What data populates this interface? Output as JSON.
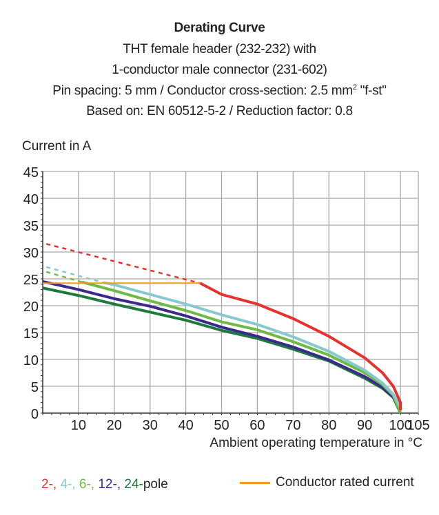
{
  "header": {
    "title": "Derating Curve",
    "line1": "THT female header (232-232) with",
    "line2": "1-conductor male connector (231-602)",
    "line3a": "Pin spacing: 5 mm / Conductor cross-section: 2.5 mm",
    "line3sup": "2",
    "line3b": " \"f-st\"",
    "line4": "Based on: EN 60512-5-2 / Reduction factor: 0.8"
  },
  "chart_data": {
    "type": "line",
    "ylabel": "Current in A",
    "xlabel": "Ambient operating temperature in °C",
    "xlim": [
      0,
      105
    ],
    "ylim": [
      0,
      45
    ],
    "xticks": [
      10,
      20,
      30,
      40,
      50,
      60,
      70,
      80,
      90,
      100,
      105
    ],
    "yticks": [
      0,
      5,
      10,
      15,
      20,
      25,
      30,
      35,
      40,
      45
    ],
    "grid": true,
    "series": [
      {
        "name": "2-",
        "color": "#e5322d",
        "dashed": [
          [
            1,
            31.5
          ],
          [
            44,
            24.2
          ]
        ],
        "points": [
          [
            44,
            24.2
          ],
          [
            50,
            22.1
          ],
          [
            60,
            20.3
          ],
          [
            70,
            17.6
          ],
          [
            80,
            14.3
          ],
          [
            90,
            10.3
          ],
          [
            95,
            7.5
          ],
          [
            98,
            5
          ],
          [
            100,
            2
          ],
          [
            100,
            0.5
          ]
        ]
      },
      {
        "name": "4-",
        "color": "#87c9cf",
        "dashed": [
          [
            1,
            27.2
          ],
          [
            17,
            24.3
          ]
        ],
        "points": [
          [
            17,
            24.3
          ],
          [
            20,
            23.9
          ],
          [
            30,
            22.1
          ],
          [
            40,
            20.3
          ],
          [
            50,
            18.3
          ],
          [
            60,
            16.5
          ],
          [
            70,
            14.2
          ],
          [
            80,
            11.5
          ],
          [
            90,
            8
          ],
          [
            95,
            5.6
          ],
          [
            98,
            3.5
          ],
          [
            100,
            1
          ]
        ]
      },
      {
        "name": "6-",
        "color": "#6dbb45",
        "dashed": [
          [
            1,
            26.3
          ],
          [
            11,
            24.4
          ]
        ],
        "points": [
          [
            11,
            24.4
          ],
          [
            20,
            22.8
          ],
          [
            30,
            20.9
          ],
          [
            40,
            19.1
          ],
          [
            50,
            17
          ],
          [
            60,
            15.5
          ],
          [
            70,
            13.3
          ],
          [
            80,
            10.8
          ],
          [
            90,
            7.5
          ],
          [
            95,
            5.3
          ],
          [
            98,
            3.3
          ],
          [
            100,
            0
          ]
        ]
      },
      {
        "name": "12-",
        "color": "#3b2a8c",
        "dashed": [],
        "points": [
          [
            0,
            24.5
          ],
          [
            10,
            23
          ],
          [
            20,
            21.3
          ],
          [
            30,
            19.9
          ],
          [
            40,
            18.1
          ],
          [
            50,
            16
          ],
          [
            60,
            14.3
          ],
          [
            70,
            12.3
          ],
          [
            80,
            9.9
          ],
          [
            90,
            6.8
          ],
          [
            95,
            4.8
          ],
          [
            98,
            3
          ],
          [
            100,
            0.5
          ]
        ]
      },
      {
        "name": "24-",
        "color": "#1d7a3d",
        "dashed": [],
        "points": [
          [
            0,
            23.3
          ],
          [
            10,
            21.9
          ],
          [
            20,
            20.3
          ],
          [
            30,
            18.8
          ],
          [
            40,
            17.3
          ],
          [
            50,
            15.4
          ],
          [
            60,
            13.9
          ],
          [
            70,
            11.9
          ],
          [
            80,
            9.7
          ],
          [
            90,
            6.5
          ],
          [
            95,
            4.6
          ],
          [
            98,
            2.9
          ],
          [
            100,
            0
          ]
        ]
      }
    ],
    "reference": {
      "name": "Conductor rated current",
      "color": "#f39a1e",
      "points": [
        [
          0,
          24.2
        ],
        [
          44,
          24.2
        ]
      ]
    },
    "legend_suffix": "pole"
  }
}
